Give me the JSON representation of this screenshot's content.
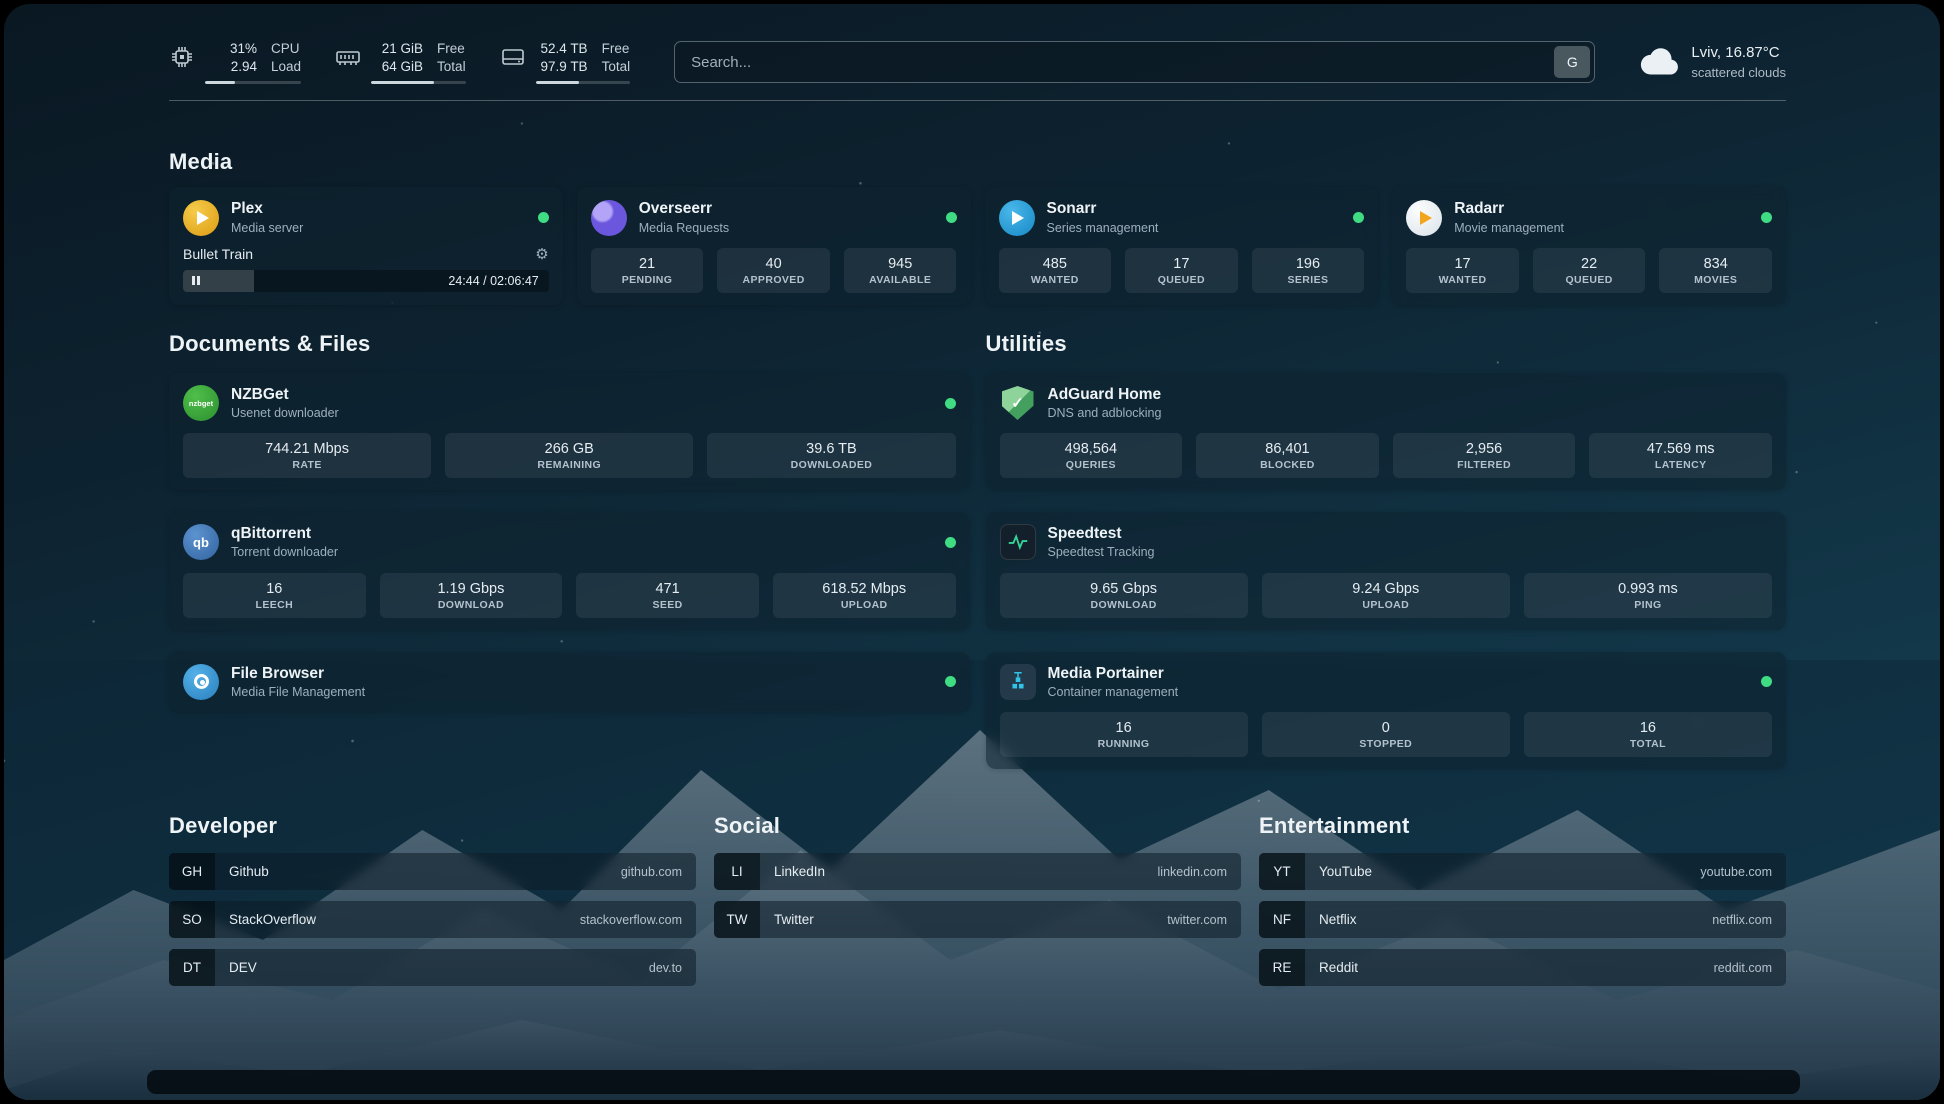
{
  "topbar": {
    "cpu": {
      "value1": "31%",
      "value2": "2.94",
      "label1": "CPU",
      "label2": "Load",
      "bar_percent": 31
    },
    "ram": {
      "value1": "21 GiB",
      "value2": "64 GiB",
      "label1": "Free",
      "label2": "Total",
      "bar_percent": 67
    },
    "disk": {
      "value1": "52.4 TB",
      "value2": "97.9 TB",
      "label1": "Free",
      "label2": "Total",
      "bar_percent": 46
    },
    "search": {
      "placeholder": "Search...",
      "button_label": "G"
    },
    "weather": {
      "location": "Lviv, 16.87°C",
      "condition": "scattered clouds"
    }
  },
  "icons": {
    "nzbget_monogram": "nzbget",
    "qbittorrent_monogram": "qb",
    "adguard_check": "✓",
    "gear": "⚙"
  },
  "colors": {
    "status_online": "#3fdc84",
    "accent_green": "#36d399"
  },
  "sections": {
    "media": {
      "title": "Media",
      "cards": [
        {
          "name": "Plex",
          "subtitle": "Media server",
          "online": true,
          "player": {
            "title": "Bullet Train",
            "time": "24:44 / 02:06:47",
            "progress_percent": 19.5
          }
        },
        {
          "name": "Overseerr",
          "subtitle": "Media Requests",
          "online": true,
          "stats": [
            {
              "value": "21",
              "label": "PENDING"
            },
            {
              "value": "40",
              "label": "APPROVED"
            },
            {
              "value": "945",
              "label": "AVAILABLE"
            }
          ]
        },
        {
          "name": "Sonarr",
          "subtitle": "Series management",
          "online": true,
          "stats": [
            {
              "value": "485",
              "label": "WANTED"
            },
            {
              "value": "17",
              "label": "QUEUED"
            },
            {
              "value": "196",
              "label": "SERIES"
            }
          ]
        },
        {
          "name": "Radarr",
          "subtitle": "Movie management",
          "online": true,
          "stats": [
            {
              "value": "17",
              "label": "WANTED"
            },
            {
              "value": "22",
              "label": "QUEUED"
            },
            {
              "value": "834",
              "label": "MOVIES"
            }
          ]
        }
      ]
    },
    "documents": {
      "title": "Documents & Files",
      "cards": [
        {
          "name": "NZBGet",
          "subtitle": "Usenet downloader",
          "online": true,
          "stats": [
            {
              "value": "744.21 Mbps",
              "label": "RATE"
            },
            {
              "value": "266 GB",
              "label": "REMAINING"
            },
            {
              "value": "39.6 TB",
              "label": "DOWNLOADED"
            }
          ]
        },
        {
          "name": "qBittorrent",
          "subtitle": "Torrent downloader",
          "online": true,
          "stats": [
            {
              "value": "16",
              "label": "LEECH"
            },
            {
              "value": "1.19 Gbps",
              "label": "DOWNLOAD"
            },
            {
              "value": "471",
              "label": "SEED"
            },
            {
              "value": "618.52 Mbps",
              "label": "UPLOAD"
            }
          ]
        },
        {
          "name": "File Browser",
          "subtitle": "Media File Management",
          "online": true
        }
      ]
    },
    "utilities": {
      "title": "Utilities",
      "cards": [
        {
          "name": "AdGuard Home",
          "subtitle": "DNS and adblocking",
          "stats": [
            {
              "value": "498,564",
              "label": "QUERIES"
            },
            {
              "value": "86,401",
              "label": "BLOCKED"
            },
            {
              "value": "2,956",
              "label": "FILTERED"
            },
            {
              "value": "47.569 ms",
              "label": "LATENCY"
            }
          ]
        },
        {
          "name": "Speedtest",
          "subtitle": "Speedtest Tracking",
          "stats": [
            {
              "value": "9.65 Gbps",
              "label": "DOWNLOAD"
            },
            {
              "value": "9.24 Gbps",
              "label": "UPLOAD"
            },
            {
              "value": "0.993 ms",
              "label": "PING"
            }
          ]
        },
        {
          "name": "Media Portainer",
          "subtitle": "Container management",
          "online": true,
          "stats": [
            {
              "value": "16",
              "label": "RUNNING"
            },
            {
              "value": "0",
              "label": "STOPPED"
            },
            {
              "value": "16",
              "label": "TOTAL"
            }
          ]
        }
      ]
    }
  },
  "bookmarks": {
    "developer": {
      "title": "Developer",
      "items": [
        {
          "abbr": "GH",
          "name": "Github",
          "url": "github.com"
        },
        {
          "abbr": "SO",
          "name": "StackOverflow",
          "url": "stackoverflow.com"
        },
        {
          "abbr": "DT",
          "name": "DEV",
          "url": "dev.to"
        }
      ]
    },
    "social": {
      "title": "Social",
      "items": [
        {
          "abbr": "LI",
          "name": "LinkedIn",
          "url": "linkedin.com"
        },
        {
          "abbr": "TW",
          "name": "Twitter",
          "url": "twitter.com"
        }
      ]
    },
    "entertainment": {
      "title": "Entertainment",
      "items": [
        {
          "abbr": "YT",
          "name": "YouTube",
          "url": "youtube.com"
        },
        {
          "abbr": "NF",
          "name": "Netflix",
          "url": "netflix.com"
        },
        {
          "abbr": "RE",
          "name": "Reddit",
          "url": "reddit.com"
        }
      ]
    }
  }
}
